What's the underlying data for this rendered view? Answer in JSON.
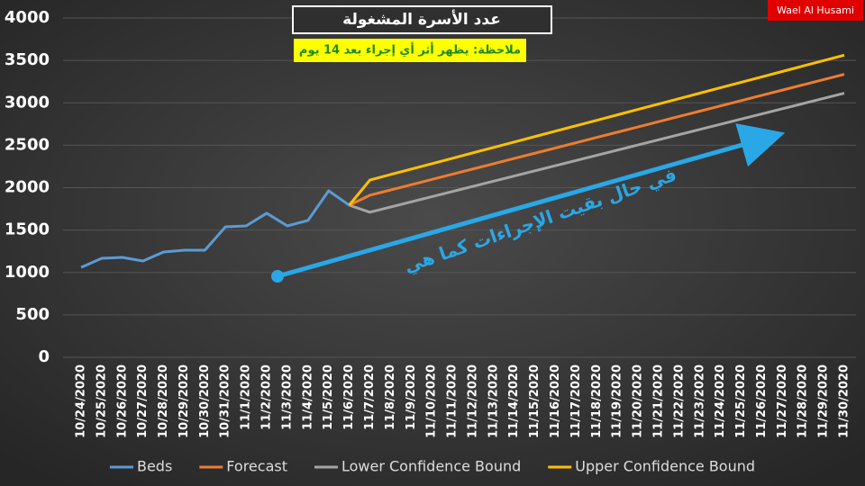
{
  "chart_data": {
    "type": "line",
    "title": "عدد الأسرة المشغولة",
    "subtitle": "ملاحظة: يظهر أثر أي إجراء بعد 14 يوم",
    "watermark": "Wael Al Husami",
    "annotation": "في حال بقيت الإجراءات كما هي",
    "categories": [
      "10/24/2020",
      "10/25/2020",
      "10/26/2020",
      "10/27/2020",
      "10/28/2020",
      "10/29/2020",
      "10/30/2020",
      "10/31/2020",
      "11/1/2020",
      "11/2/2020",
      "11/3/2020",
      "11/4/2020",
      "11/5/2020",
      "11/6/2020",
      "11/7/2020",
      "11/8/2020",
      "11/9/2020",
      "11/10/2020",
      "11/11/2020",
      "11/12/2020",
      "11/13/2020",
      "11/14/2020",
      "11/15/2020",
      "11/16/2020",
      "11/17/2020",
      "11/18/2020",
      "11/19/2020",
      "11/20/2020",
      "11/21/2020",
      "11/22/2020",
      "11/23/2020",
      "11/24/2020",
      "11/25/2020",
      "11/26/2020",
      "11/27/2020",
      "11/28/2020",
      "11/29/2020",
      "11/30/2020"
    ],
    "series": [
      {
        "name": "Beds",
        "color": "#5b9bd5",
        "values": [
          1060,
          1167,
          1178,
          1135,
          1241,
          1263,
          1263,
          1538,
          1549,
          1698,
          1549,
          1613,
          1963,
          1793,
          null,
          null,
          null,
          null,
          null,
          null,
          null,
          null,
          null,
          null,
          null,
          null,
          null,
          null,
          null,
          null,
          null,
          null,
          null,
          null,
          null,
          null,
          null,
          null
        ]
      },
      {
        "name": "Forecast",
        "color": "#ed7d31",
        "values": [
          null,
          null,
          null,
          null,
          null,
          null,
          null,
          null,
          null,
          null,
          null,
          null,
          null,
          1793,
          1910,
          1972,
          2034,
          2096,
          2158,
          2220,
          2282,
          2344,
          2406,
          2468,
          2530,
          2592,
          2654,
          2716,
          2778,
          2840,
          2902,
          2964,
          3026,
          3088,
          3150,
          3212,
          3274,
          3336
        ]
      },
      {
        "name": "Lower Confidence Bound",
        "color": "#a5a5a5",
        "values": [
          null,
          null,
          null,
          null,
          null,
          null,
          null,
          null,
          null,
          null,
          null,
          null,
          null,
          1793,
          1710,
          1771,
          1832,
          1893,
          1954,
          2015,
          2076,
          2137,
          2198,
          2259,
          2320,
          2381,
          2442,
          2503,
          2564,
          2625,
          2686,
          2747,
          2808,
          2869,
          2930,
          2991,
          3052,
          3113
        ]
      },
      {
        "name": "Upper Confidence Bound",
        "color": "#ffc000",
        "values": [
          null,
          null,
          null,
          null,
          null,
          null,
          null,
          null,
          null,
          null,
          null,
          null,
          null,
          1793,
          2090,
          2154,
          2218,
          2282,
          2346,
          2410,
          2474,
          2538,
          2602,
          2666,
          2730,
          2794,
          2858,
          2922,
          2986,
          3050,
          3114,
          3178,
          3242,
          3306,
          3370,
          3434,
          3498,
          3562
        ]
      }
    ],
    "ylim": [
      0,
      4000
    ],
    "yticks": [
      0,
      500,
      1000,
      1500,
      2000,
      2500,
      3000,
      3500,
      4000
    ],
    "grid": true
  }
}
